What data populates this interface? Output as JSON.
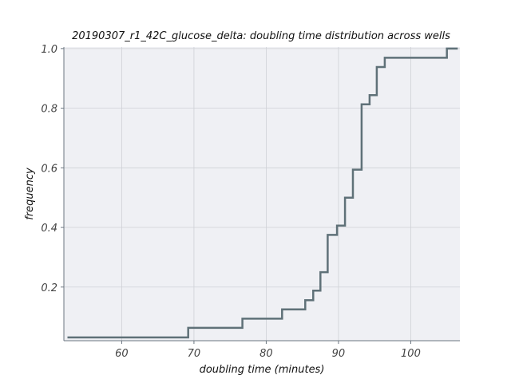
{
  "chart_data": {
    "type": "line",
    "subtype": "ecdf-step",
    "title": "20190307_r1_42C_glucose_delta: doubling time distribution across wells",
    "xlabel": "doubling time (minutes)",
    "ylabel": "frequency",
    "xlim": [
      52,
      106.8
    ],
    "ylim": [
      0.02,
      1.005
    ],
    "xticks": [
      60,
      70,
      80,
      90,
      100
    ],
    "yticks": [
      0.2,
      0.4,
      0.6,
      0.8,
      1.0
    ],
    "grid": true,
    "series": [
      {
        "color": "#5f7178",
        "x": [
          52.5,
          69.2,
          76.7,
          82.2,
          85.4,
          86.5,
          87.5,
          88.5,
          89.8,
          90.9,
          92.0,
          93.2,
          94.3,
          95.3,
          96.4,
          105.0,
          106.5
        ],
        "y": [
          0.031,
          0.063,
          0.094,
          0.125,
          0.156,
          0.188,
          0.25,
          0.375,
          0.406,
          0.5,
          0.594,
          0.813,
          0.844,
          0.938,
          0.969,
          1.0,
          1.0
        ]
      }
    ]
  }
}
